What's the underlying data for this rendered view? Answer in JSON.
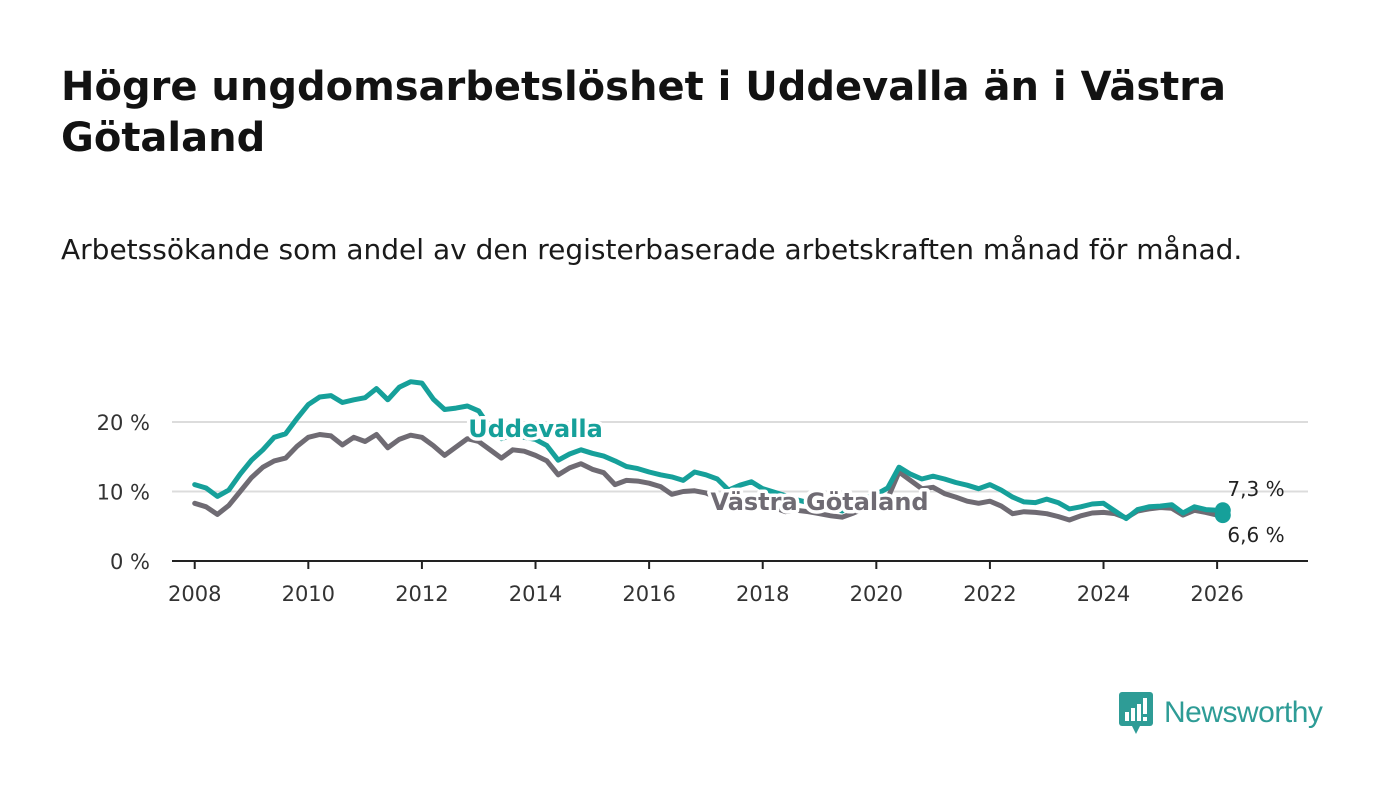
{
  "title": "Högre ungdomsarbetslöshet i Uddevalla än i Västra Götaland",
  "subtitle": "Arbetssökande som andel av den registerbaserade arbetskraften månad för månad.",
  "brand": {
    "name": "Newsworthy",
    "color": "#2e9c96"
  },
  "colors": {
    "uddevalla": "#16a09a",
    "vastra": "#6f6b73",
    "grid": "#dcdcdc",
    "axis": "#222222"
  },
  "chart_data": {
    "type": "line",
    "title": "Högre ungdomsarbetslöshet i Uddevalla än i Västra Götaland",
    "xlabel": "",
    "ylabel": "",
    "xlim": [
      2007.6,
      2027.6
    ],
    "ylim": [
      0,
      20
    ],
    "x_ticks": [
      2008,
      2010,
      2012,
      2014,
      2016,
      2018,
      2020,
      2022,
      2024,
      2026
    ],
    "x_tick_labels": [
      "2008",
      "2010",
      "2012",
      "2014",
      "2016",
      "2018",
      "2020",
      "2022",
      "2024",
      "2026"
    ],
    "y_ticks": [
      0,
      10,
      20
    ],
    "y_tick_labels": [
      "0 %",
      "10 %",
      "20 %"
    ],
    "grid": true,
    "series": [
      {
        "name": "Uddevalla",
        "label_x": 2014.0,
        "label_y": 19.0,
        "end_label": "7,3 %",
        "end_value": 7.3,
        "points": [
          [
            2008.0,
            11.0
          ],
          [
            2008.2,
            10.5
          ],
          [
            2008.4,
            9.3
          ],
          [
            2008.6,
            10.2
          ],
          [
            2008.8,
            12.5
          ],
          [
            2009.0,
            14.5
          ],
          [
            2009.2,
            16.0
          ],
          [
            2009.4,
            17.8
          ],
          [
            2009.6,
            18.3
          ],
          [
            2009.8,
            20.5
          ],
          [
            2010.0,
            22.5
          ],
          [
            2010.2,
            23.6
          ],
          [
            2010.4,
            23.8
          ],
          [
            2010.6,
            22.8
          ],
          [
            2010.8,
            23.2
          ],
          [
            2011.0,
            23.5
          ],
          [
            2011.2,
            24.8
          ],
          [
            2011.4,
            23.2
          ],
          [
            2011.6,
            25.0
          ],
          [
            2011.8,
            25.8
          ],
          [
            2012.0,
            25.6
          ],
          [
            2012.2,
            23.3
          ],
          [
            2012.4,
            21.8
          ],
          [
            2012.6,
            22.0
          ],
          [
            2012.8,
            22.3
          ],
          [
            2013.0,
            21.6
          ],
          [
            2013.2,
            19.2
          ],
          [
            2013.4,
            17.6
          ],
          [
            2013.6,
            18.2
          ],
          [
            2013.8,
            17.8
          ],
          [
            2014.0,
            17.5
          ],
          [
            2014.2,
            16.6
          ],
          [
            2014.4,
            14.5
          ],
          [
            2014.6,
            15.4
          ],
          [
            2014.8,
            16.0
          ],
          [
            2015.0,
            15.5
          ],
          [
            2015.2,
            15.1
          ],
          [
            2015.4,
            14.4
          ],
          [
            2015.6,
            13.6
          ],
          [
            2015.8,
            13.3
          ],
          [
            2016.0,
            12.8
          ],
          [
            2016.2,
            12.4
          ],
          [
            2016.4,
            12.1
          ],
          [
            2016.6,
            11.6
          ],
          [
            2016.8,
            12.8
          ],
          [
            2017.0,
            12.4
          ],
          [
            2017.2,
            11.8
          ],
          [
            2017.4,
            10.2
          ],
          [
            2017.6,
            10.9
          ],
          [
            2017.8,
            11.4
          ],
          [
            2018.0,
            10.4
          ],
          [
            2018.2,
            9.9
          ],
          [
            2018.4,
            9.4
          ],
          [
            2018.6,
            8.8
          ],
          [
            2018.8,
            8.4
          ],
          [
            2019.0,
            8.1
          ],
          [
            2019.2,
            7.6
          ],
          [
            2019.4,
            7.2
          ],
          [
            2019.6,
            8.0
          ],
          [
            2019.8,
            9.0
          ],
          [
            2020.0,
            9.6
          ],
          [
            2020.2,
            10.5
          ],
          [
            2020.4,
            13.5
          ],
          [
            2020.6,
            12.5
          ],
          [
            2020.8,
            11.8
          ],
          [
            2021.0,
            12.2
          ],
          [
            2021.2,
            11.8
          ],
          [
            2021.4,
            11.3
          ],
          [
            2021.6,
            10.9
          ],
          [
            2021.8,
            10.4
          ],
          [
            2022.0,
            11.0
          ],
          [
            2022.2,
            10.2
          ],
          [
            2022.4,
            9.2
          ],
          [
            2022.6,
            8.5
          ],
          [
            2022.8,
            8.4
          ],
          [
            2023.0,
            8.9
          ],
          [
            2023.2,
            8.4
          ],
          [
            2023.4,
            7.5
          ],
          [
            2023.6,
            7.8
          ],
          [
            2023.8,
            8.2
          ],
          [
            2024.0,
            8.3
          ],
          [
            2024.2,
            7.2
          ],
          [
            2024.4,
            6.1
          ],
          [
            2024.6,
            7.4
          ],
          [
            2024.8,
            7.8
          ],
          [
            2025.0,
            7.9
          ],
          [
            2025.2,
            8.1
          ],
          [
            2025.4,
            6.9
          ],
          [
            2025.6,
            7.8
          ],
          [
            2025.8,
            7.4
          ],
          [
            2026.0,
            7.3
          ],
          [
            2026.1,
            7.3
          ]
        ]
      },
      {
        "name": "Västra Götaland",
        "label_x": 2019.0,
        "label_y": 8.5,
        "end_label": "6,6 %",
        "end_value": 6.6,
        "points": [
          [
            2008.0,
            8.3
          ],
          [
            2008.2,
            7.8
          ],
          [
            2008.4,
            6.7
          ],
          [
            2008.6,
            8.0
          ],
          [
            2008.8,
            10.0
          ],
          [
            2009.0,
            12.0
          ],
          [
            2009.2,
            13.5
          ],
          [
            2009.4,
            14.4
          ],
          [
            2009.6,
            14.8
          ],
          [
            2009.8,
            16.5
          ],
          [
            2010.0,
            17.8
          ],
          [
            2010.2,
            18.2
          ],
          [
            2010.4,
            18.0
          ],
          [
            2010.6,
            16.7
          ],
          [
            2010.8,
            17.8
          ],
          [
            2011.0,
            17.2
          ],
          [
            2011.2,
            18.2
          ],
          [
            2011.4,
            16.3
          ],
          [
            2011.6,
            17.5
          ],
          [
            2011.8,
            18.1
          ],
          [
            2012.0,
            17.8
          ],
          [
            2012.2,
            16.6
          ],
          [
            2012.4,
            15.2
          ],
          [
            2012.6,
            16.4
          ],
          [
            2012.8,
            17.6
          ],
          [
            2013.0,
            17.2
          ],
          [
            2013.2,
            16.0
          ],
          [
            2013.4,
            14.8
          ],
          [
            2013.6,
            16.0
          ],
          [
            2013.8,
            15.8
          ],
          [
            2014.0,
            15.2
          ],
          [
            2014.2,
            14.4
          ],
          [
            2014.4,
            12.4
          ],
          [
            2014.6,
            13.4
          ],
          [
            2014.8,
            14.0
          ],
          [
            2015.0,
            13.2
          ],
          [
            2015.2,
            12.7
          ],
          [
            2015.4,
            11.0
          ],
          [
            2015.6,
            11.6
          ],
          [
            2015.8,
            11.5
          ],
          [
            2016.0,
            11.2
          ],
          [
            2016.2,
            10.7
          ],
          [
            2016.4,
            9.6
          ],
          [
            2016.6,
            10.0
          ],
          [
            2016.8,
            10.1
          ],
          [
            2017.0,
            9.8
          ],
          [
            2017.2,
            9.1
          ],
          [
            2017.4,
            8.0
          ],
          [
            2017.6,
            8.5
          ],
          [
            2017.8,
            8.2
          ],
          [
            2018.0,
            8.1
          ],
          [
            2018.2,
            7.7
          ],
          [
            2018.4,
            7.1
          ],
          [
            2018.6,
            7.3
          ],
          [
            2018.8,
            7.1
          ],
          [
            2019.0,
            6.8
          ],
          [
            2019.2,
            6.5
          ],
          [
            2019.4,
            6.3
          ],
          [
            2019.6,
            6.9
          ],
          [
            2019.8,
            7.6
          ],
          [
            2020.0,
            8.3
          ],
          [
            2020.2,
            9.0
          ],
          [
            2020.4,
            12.8
          ],
          [
            2020.6,
            11.6
          ],
          [
            2020.8,
            10.4
          ],
          [
            2021.0,
            10.6
          ],
          [
            2021.2,
            9.7
          ],
          [
            2021.4,
            9.2
          ],
          [
            2021.6,
            8.6
          ],
          [
            2021.8,
            8.3
          ],
          [
            2022.0,
            8.6
          ],
          [
            2022.2,
            7.9
          ],
          [
            2022.4,
            6.8
          ],
          [
            2022.6,
            7.1
          ],
          [
            2022.8,
            7.0
          ],
          [
            2023.0,
            6.8
          ],
          [
            2023.2,
            6.4
          ],
          [
            2023.4,
            5.9
          ],
          [
            2023.6,
            6.5
          ],
          [
            2023.8,
            6.9
          ],
          [
            2024.0,
            7.0
          ],
          [
            2024.2,
            6.8
          ],
          [
            2024.4,
            6.2
          ],
          [
            2024.6,
            7.2
          ],
          [
            2024.8,
            7.5
          ],
          [
            2025.0,
            7.7
          ],
          [
            2025.2,
            7.6
          ],
          [
            2025.4,
            6.6
          ],
          [
            2025.6,
            7.3
          ],
          [
            2025.8,
            7.0
          ],
          [
            2026.0,
            6.6
          ],
          [
            2026.1,
            6.6
          ]
        ]
      }
    ]
  }
}
